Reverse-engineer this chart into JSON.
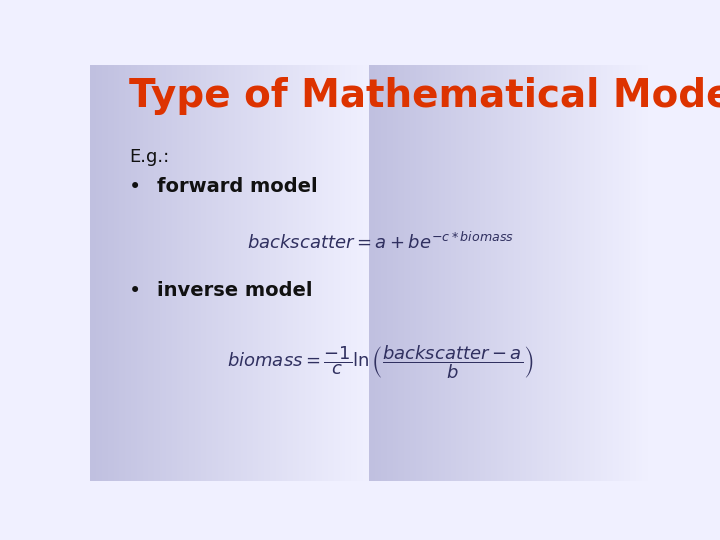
{
  "title": "Type of Mathematical Model",
  "title_color": "#DD3300",
  "title_fontsize": 28,
  "bg_color_top": "#C0C0E0",
  "bg_color_bottom": "#F0F0FF",
  "eg_text": "E.g.:",
  "bullet1_label": "forward model",
  "bullet2_label": "inverse model",
  "text_color": "#111111",
  "eq_color": "#303060",
  "body_fontsize": 13,
  "eq_fontsize": 13
}
